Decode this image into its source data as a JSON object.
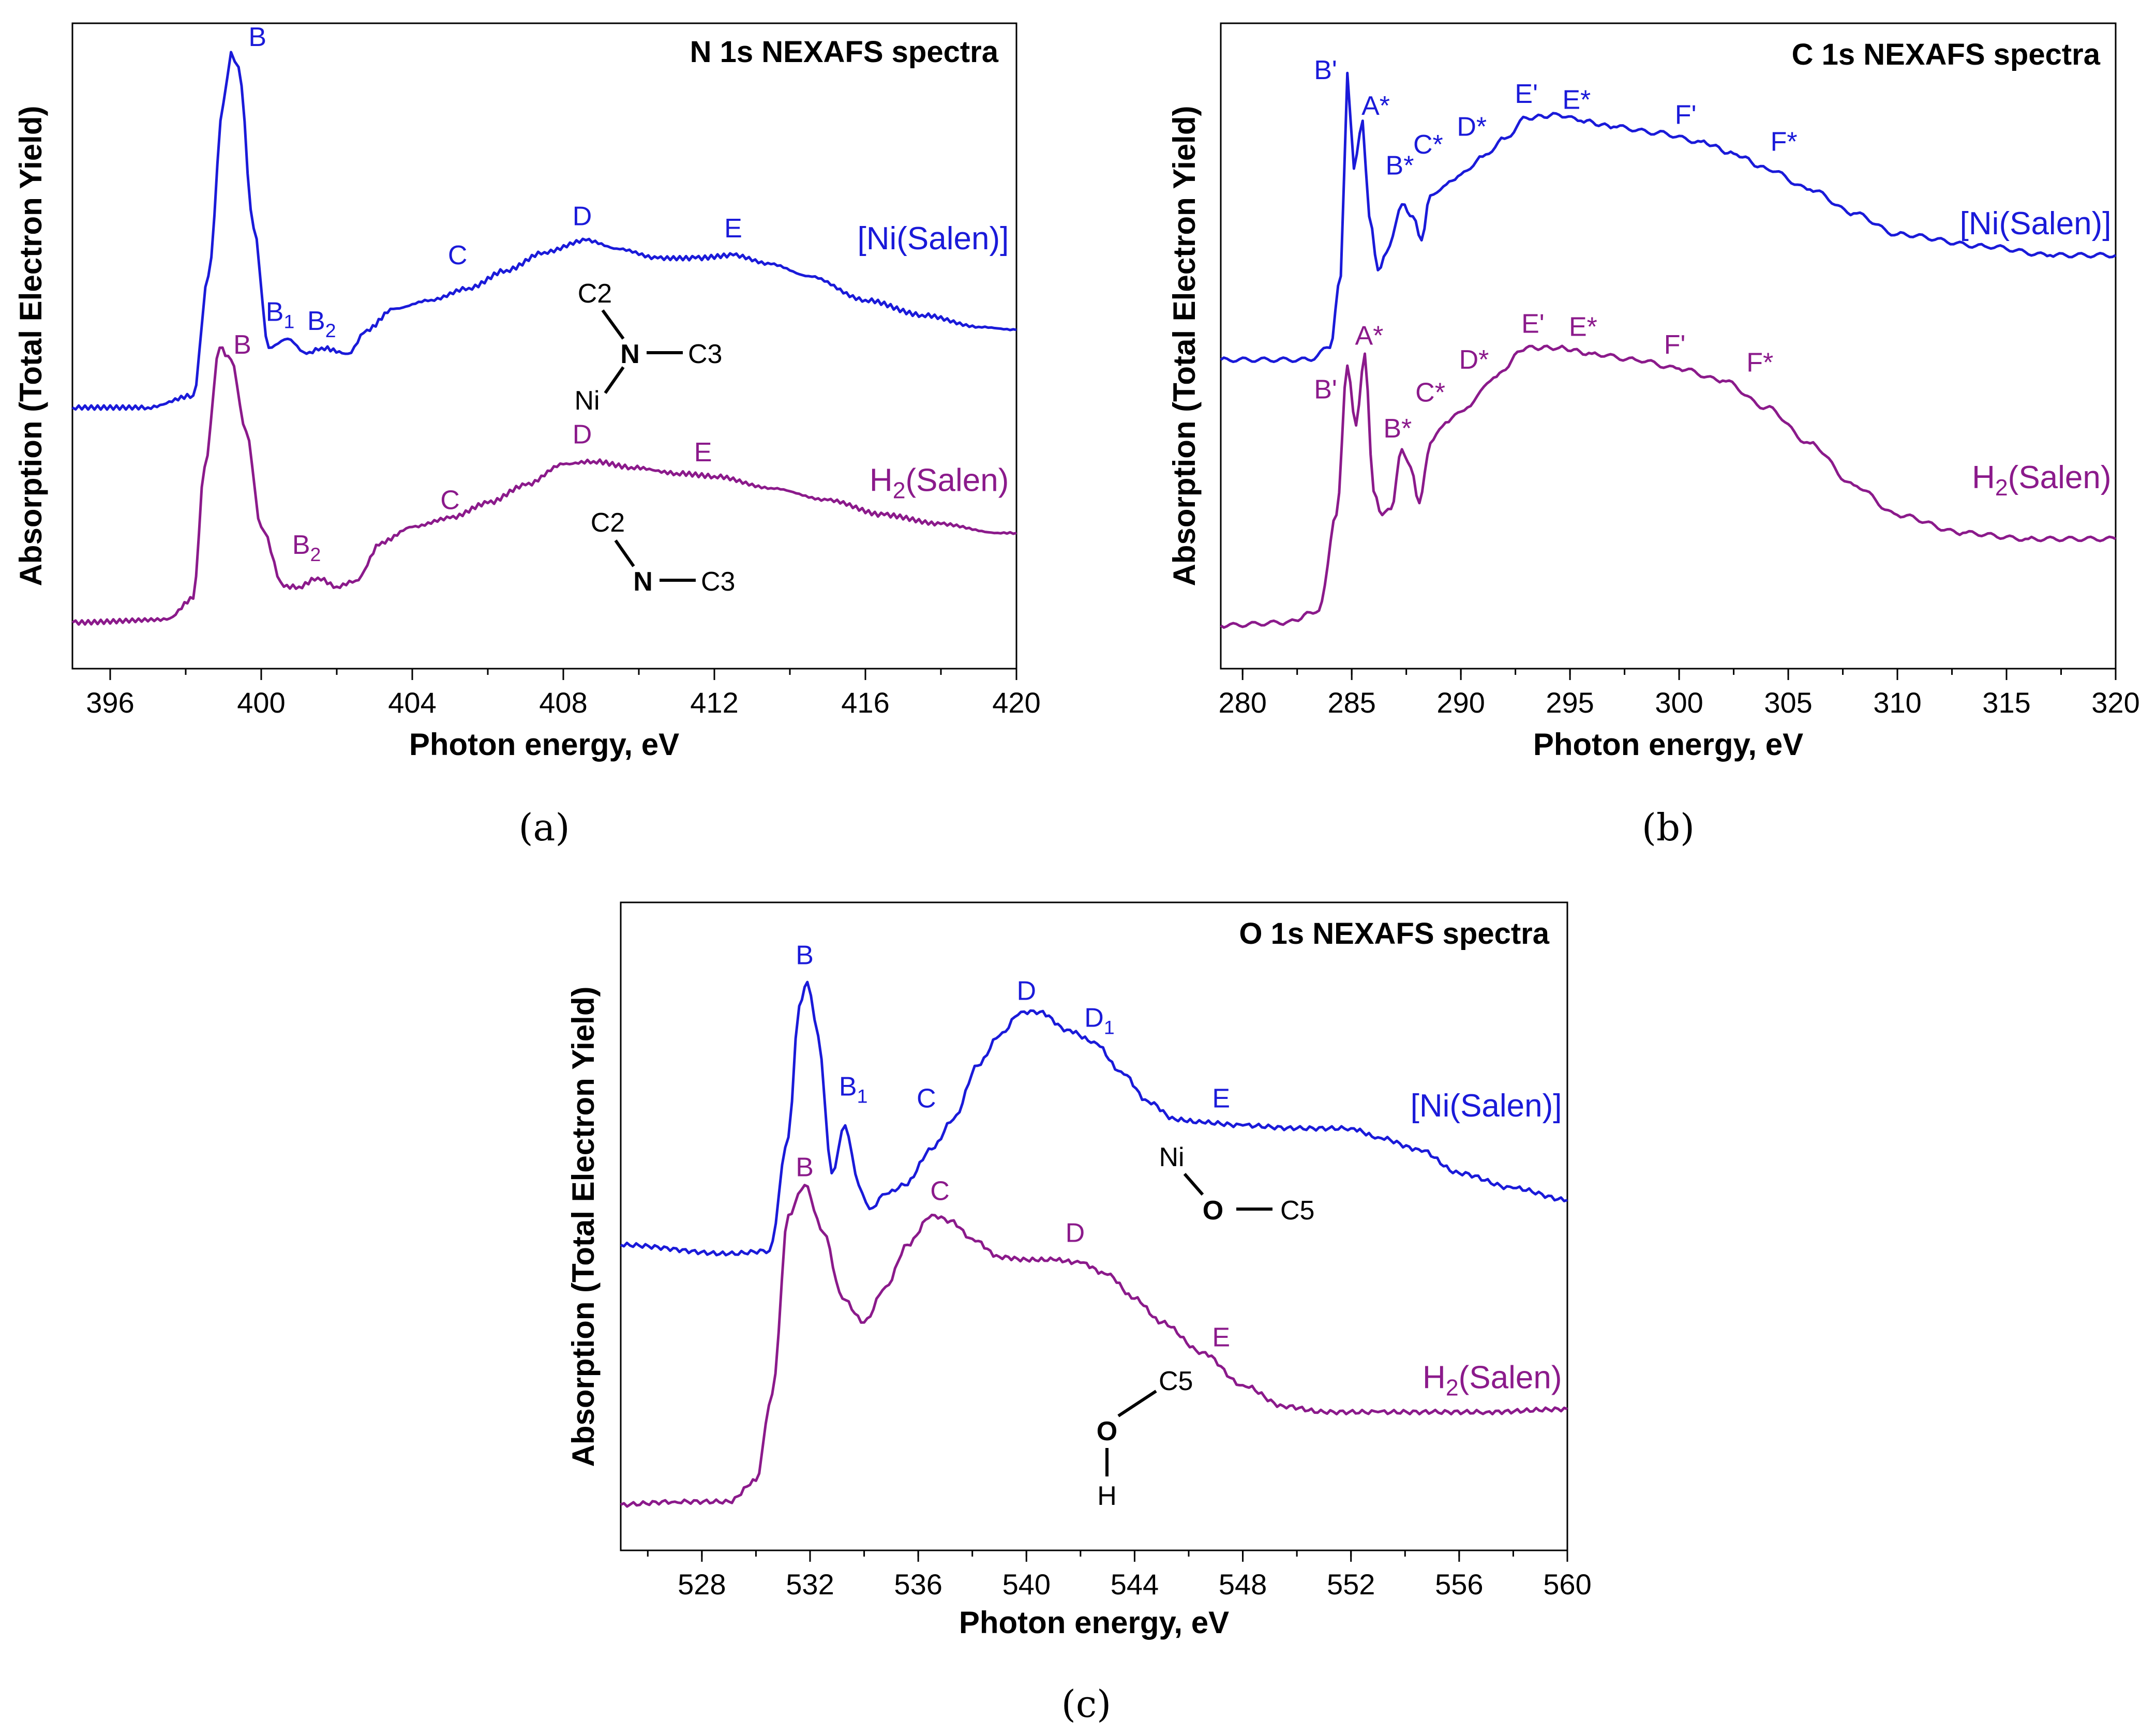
{
  "colors": {
    "ni_salen": "#1a1ad9",
    "h2_salen": "#8b1a8b",
    "axis": "#000000",
    "o_atom_ni": "#2e75c0",
    "o_atom_h2": "#7a1020"
  },
  "chart_data": [
    {
      "panel": "(a)",
      "type": "line",
      "title": "N 1s NEXAFS spectra",
      "xlabel": "Photon energy, eV",
      "ylabel": "Absorption (Total Electron Yield)",
      "xlim": [
        395,
        420
      ],
      "ylim": [
        0,
        1
      ],
      "xticks": [
        396,
        400,
        404,
        408,
        412,
        416,
        420
      ],
      "series": [
        {
          "name": "[Ni(Salen)]",
          "color": "#1a1ad9",
          "x": [
            395,
            397,
            398.2,
            398.6,
            399.0,
            399.2,
            399.4,
            399.8,
            400.2,
            400.7,
            401.2,
            401.6,
            402.3,
            402.8,
            403.5,
            404.5,
            405.5,
            406.5,
            407.5,
            408.6,
            409.5,
            410.5,
            411.5,
            412.5,
            413.5,
            414.5,
            416,
            417.5,
            419,
            420
          ],
          "values": [
            0.4,
            0.4,
            0.42,
            0.62,
            0.91,
            0.995,
            0.97,
            0.7,
            0.5,
            0.515,
            0.49,
            0.5,
            0.49,
            0.53,
            0.565,
            0.58,
            0.6,
            0.63,
            0.66,
            0.68,
            0.665,
            0.65,
            0.65,
            0.655,
            0.64,
            0.62,
            0.58,
            0.555,
            0.535,
            0.53
          ]
        },
        {
          "name": "H2(Salen)",
          "color": "#8b1a8b",
          "x": [
            395,
            397.5,
            398.2,
            398.5,
            398.9,
            399.2,
            399.6,
            400.0,
            400.6,
            401.0,
            401.5,
            402.0,
            402.5,
            403.2,
            404.0,
            405.0,
            406.0,
            407.0,
            408.0,
            408.8,
            409.8,
            411.0,
            412.0,
            413.5,
            415,
            416.5,
            418,
            419.5,
            420
          ],
          "values": [
            0.04,
            0.045,
            0.08,
            0.3,
            0.5,
            0.48,
            0.36,
            0.2,
            0.1,
            0.1,
            0.115,
            0.1,
            0.11,
            0.175,
            0.2,
            0.215,
            0.24,
            0.27,
            0.305,
            0.31,
            0.3,
            0.29,
            0.285,
            0.265,
            0.245,
            0.22,
            0.205,
            0.19,
            0.19
          ]
        }
      ],
      "annotations": [
        {
          "text": "B",
          "x": 399.9,
          "y": 1.005,
          "series": 0
        },
        {
          "text": "B1",
          "x": 400.5,
          "y": 0.545,
          "series": 0,
          "sub": true
        },
        {
          "text": "B2",
          "x": 401.6,
          "y": 0.53,
          "series": 0,
          "sub": true
        },
        {
          "text": "C",
          "x": 405.2,
          "y": 0.64,
          "series": 0
        },
        {
          "text": "D",
          "x": 408.5,
          "y": 0.705,
          "series": 0
        },
        {
          "text": "E",
          "x": 412.5,
          "y": 0.685,
          "series": 0
        },
        {
          "text": "B",
          "x": 399.5,
          "y": 0.49,
          "series": 1
        },
        {
          "text": "B2",
          "x": 401.2,
          "y": 0.155,
          "series": 1,
          "sub": true
        },
        {
          "text": "C",
          "x": 405.0,
          "y": 0.23,
          "series": 1
        },
        {
          "text": "D",
          "x": 408.5,
          "y": 0.34,
          "series": 1
        },
        {
          "text": "E",
          "x": 411.7,
          "y": 0.31,
          "series": 1
        }
      ],
      "series_labels": [
        {
          "text": "[Ni(Salen)]",
          "x": 419.8,
          "y": 0.665,
          "series": 0
        },
        {
          "text": "H2(Salen)",
          "x": 419.8,
          "y": 0.26,
          "series": 1,
          "sub": true
        }
      ],
      "molecules": [
        {
          "center": "N",
          "center_color": "#1a1ad9",
          "atoms": [
            "C2",
            "C3",
            "Ni"
          ]
        },
        {
          "center": "N",
          "center_color": "#8b1a8b",
          "atoms": [
            "C2",
            "C3"
          ]
        }
      ]
    },
    {
      "panel": "(b)",
      "type": "line",
      "title": "C 1s NEXAFS spectra",
      "xlabel": "Photon energy, eV",
      "ylabel": "Absorption (Total Electron Yield)",
      "xlim": [
        279,
        320
      ],
      "ylim": [
        0,
        1
      ],
      "xticks": [
        280,
        285,
        290,
        295,
        300,
        305,
        310,
        315,
        320
      ],
      "series": [
        {
          "name": "[Ni(Salen)]",
          "color": "#1a1ad9",
          "x": [
            279,
            283,
            284.0,
            284.5,
            284.8,
            285.1,
            285.5,
            285.8,
            286.2,
            286.6,
            287.3,
            287.8,
            288.2,
            288.6,
            289.2,
            290.0,
            291.0,
            292.0,
            293.0,
            294.5,
            295.5,
            297,
            299,
            301,
            302.5,
            304,
            306,
            308,
            310,
            314,
            317,
            320
          ],
          "values": [
            0.48,
            0.48,
            0.5,
            0.62,
            0.96,
            0.8,
            0.88,
            0.72,
            0.63,
            0.66,
            0.74,
            0.72,
            0.68,
            0.755,
            0.77,
            0.79,
            0.82,
            0.85,
            0.885,
            0.89,
            0.88,
            0.87,
            0.86,
            0.845,
            0.825,
            0.8,
            0.765,
            0.725,
            0.69,
            0.67,
            0.655,
            0.655
          ]
        },
        {
          "name": "H2(Salen)",
          "color": "#8b1a8b",
          "x": [
            279,
            282,
            283.5,
            284.3,
            284.8,
            285.2,
            285.6,
            286.0,
            286.4,
            286.8,
            287.3,
            287.7,
            288.1,
            288.6,
            289.3,
            290.3,
            291.5,
            293.0,
            294.5,
            296,
            298,
            300,
            302,
            304,
            306,
            308,
            310,
            313,
            316,
            320
          ],
          "values": [
            0.035,
            0.04,
            0.06,
            0.22,
            0.47,
            0.37,
            0.49,
            0.26,
            0.22,
            0.23,
            0.33,
            0.3,
            0.24,
            0.34,
            0.375,
            0.4,
            0.45,
            0.5,
            0.5,
            0.49,
            0.48,
            0.465,
            0.445,
            0.4,
            0.34,
            0.27,
            0.22,
            0.19,
            0.18,
            0.18
          ]
        }
      ],
      "annotations": [
        {
          "text": "B'",
          "x": 283.8,
          "y": 0.95,
          "series": 0
        },
        {
          "text": "A*",
          "x": 286.1,
          "y": 0.89,
          "series": 0
        },
        {
          "text": "B*",
          "x": 287.2,
          "y": 0.79,
          "series": 0
        },
        {
          "text": "C*",
          "x": 288.5,
          "y": 0.825,
          "series": 0
        },
        {
          "text": "D*",
          "x": 290.5,
          "y": 0.855,
          "series": 0
        },
        {
          "text": "E'",
          "x": 293.0,
          "y": 0.91,
          "series": 0
        },
        {
          "text": "E*",
          "x": 295.3,
          "y": 0.9,
          "series": 0
        },
        {
          "text": "F'",
          "x": 300.3,
          "y": 0.875,
          "series": 0
        },
        {
          "text": "F*",
          "x": 304.8,
          "y": 0.83,
          "series": 0
        },
        {
          "text": "B'",
          "x": 283.8,
          "y": 0.415,
          "series": 1
        },
        {
          "text": "A*",
          "x": 285.8,
          "y": 0.505,
          "series": 1
        },
        {
          "text": "B*",
          "x": 287.1,
          "y": 0.35,
          "series": 1
        },
        {
          "text": "C*",
          "x": 288.6,
          "y": 0.41,
          "series": 1
        },
        {
          "text": "D*",
          "x": 290.6,
          "y": 0.465,
          "series": 1
        },
        {
          "text": "E'",
          "x": 293.3,
          "y": 0.525,
          "series": 1
        },
        {
          "text": "E*",
          "x": 295.6,
          "y": 0.52,
          "series": 1
        },
        {
          "text": "F'",
          "x": 299.8,
          "y": 0.49,
          "series": 1
        },
        {
          "text": "F*",
          "x": 303.7,
          "y": 0.46,
          "series": 1
        }
      ],
      "series_labels": [
        {
          "text": "[Ni(Salen)]",
          "x": 319.8,
          "y": 0.69,
          "series": 0
        },
        {
          "text": "H2(Salen)",
          "x": 319.8,
          "y": 0.265,
          "series": 1,
          "sub": true
        }
      ]
    },
    {
      "panel": "(c)",
      "type": "line",
      "title": "O 1s NEXAFS spectra",
      "xlabel": "Photon energy, eV",
      "ylabel": "Absorption (Total Electron Yield)",
      "xlim": [
        525,
        560
      ],
      "ylim": [
        0,
        1
      ],
      "xticks": [
        528,
        532,
        536,
        540,
        544,
        548,
        552,
        556,
        560
      ],
      "series": [
        {
          "name": "[Ni(Salen)]",
          "color": "#1a1ad9",
          "x": [
            525,
            529,
            530.5,
            531.2,
            531.6,
            531.9,
            532.3,
            532.8,
            533.3,
            533.8,
            534.2,
            534.8,
            535.5,
            536.5,
            537.3,
            538.2,
            539.0,
            539.8,
            540.5,
            541.5,
            542.5,
            543.5,
            544.5,
            545.5,
            546.5,
            548,
            550,
            552,
            553,
            554.5,
            556,
            558,
            560
          ],
          "values": [
            0.47,
            0.455,
            0.46,
            0.65,
            0.87,
            0.91,
            0.82,
            0.59,
            0.67,
            0.57,
            0.53,
            0.555,
            0.57,
            0.63,
            0.68,
            0.77,
            0.82,
            0.86,
            0.86,
            0.83,
            0.81,
            0.76,
            0.71,
            0.68,
            0.675,
            0.67,
            0.665,
            0.665,
            0.65,
            0.63,
            0.59,
            0.565,
            0.545
          ]
        },
        {
          "name": "H2(Salen)",
          "color": "#8b1a8b",
          "x": [
            525,
            527,
            529,
            530.0,
            530.6,
            531.2,
            531.8,
            532.5,
            533.2,
            534.0,
            534.8,
            535.6,
            536.5,
            537.2,
            538.0,
            539.0,
            540.0,
            541.0,
            542.0,
            543.0,
            544.0,
            545.0,
            546.5,
            548,
            549.5,
            551,
            553,
            555,
            557,
            560
          ],
          "values": [
            0.035,
            0.04,
            0.04,
            0.075,
            0.22,
            0.52,
            0.57,
            0.49,
            0.38,
            0.34,
            0.4,
            0.47,
            0.52,
            0.51,
            0.48,
            0.45,
            0.445,
            0.445,
            0.44,
            0.42,
            0.38,
            0.34,
            0.29,
            0.235,
            0.2,
            0.19,
            0.19,
            0.19,
            0.19,
            0.195
          ]
        }
      ],
      "annotations": [
        {
          "text": "B",
          "x": 531.8,
          "y": 0.94,
          "series": 0
        },
        {
          "text": "B1",
          "x": 533.6,
          "y": 0.72,
          "series": 0,
          "sub": true
        },
        {
          "text": "C",
          "x": 536.3,
          "y": 0.7,
          "series": 0
        },
        {
          "text": "D",
          "x": 540.0,
          "y": 0.88,
          "series": 0
        },
        {
          "text": "D1",
          "x": 542.7,
          "y": 0.835,
          "series": 0,
          "sub": true
        },
        {
          "text": "E",
          "x": 547.2,
          "y": 0.7,
          "series": 0
        },
        {
          "text": "B",
          "x": 531.8,
          "y": 0.585,
          "series": 1
        },
        {
          "text": "C",
          "x": 536.8,
          "y": 0.545,
          "series": 1
        },
        {
          "text": "D",
          "x": 541.8,
          "y": 0.475,
          "series": 1
        },
        {
          "text": "E",
          "x": 547.2,
          "y": 0.3,
          "series": 1
        }
      ],
      "series_labels": [
        {
          "text": "[Ni(Salen)]",
          "x": 559.8,
          "y": 0.685,
          "series": 0
        },
        {
          "text": "H2(Salen)",
          "x": 559.8,
          "y": 0.23,
          "series": 1,
          "sub": true
        }
      ],
      "molecules": [
        {
          "center": "O",
          "center_color": "#2e75c0",
          "atoms": [
            "Ni",
            "C5"
          ]
        },
        {
          "center": "O",
          "center_color": "#7a1020",
          "atoms": [
            "C5",
            "H"
          ]
        }
      ]
    }
  ]
}
